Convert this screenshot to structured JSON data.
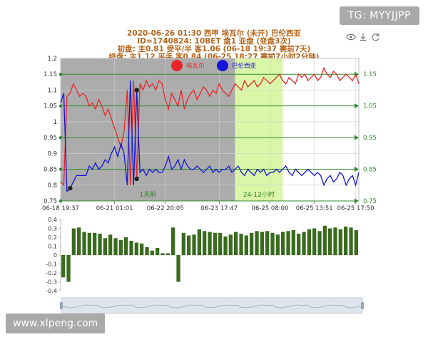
{
  "header": {
    "line1": "2020-06-26 01:30 西甲 埃瓦尔 (未开) 巴伦西亚",
    "line2": "ID=1740824: 10BET 盘1 亚盘 (变盘3次)",
    "line3": "初盘:    主0.81    受平/半  客1.06    (06-18 19:37 赛前7天)",
    "line4": "终盘:    主1.12    平手  客0.84    (06-25 18:27 赛前7小时2分钟)"
  },
  "watermark_top": "TG: MYYJJPP",
  "watermark_bottom": "www.xlpeng.com",
  "toolbar": {
    "view_icon": "eye-icon",
    "download_icon": "download-icon",
    "refresh_icon": "refresh-icon"
  },
  "colors": {
    "home": "#e8262a",
    "away": "#1515d9",
    "gray_zone": "#a8a8a8",
    "green_zone": "#d8f5a2",
    "ref_line": "#2e8b2e",
    "bar": "#3a6b1f"
  },
  "chart_data": {
    "type": "line",
    "legend": [
      "埃瓦尔",
      "巴伦西亚"
    ],
    "xticks": [
      "06-18 19:37",
      "06-21 01:01",
      "06-22 20:05",
      "06-23 17:47",
      "06-25 08:00",
      "06-25 13:51",
      "06-25 17:50"
    ],
    "ylim": [
      0.75,
      1.2
    ],
    "yticks": [
      "0.75",
      "0.8",
      "0.85",
      "0.9",
      "0.95",
      "1",
      "1.05",
      "1.1",
      "1.15",
      "1.2"
    ],
    "ref_lines": [
      1.15,
      1.05,
      0.95,
      0.85,
      0.75
    ],
    "ref_labels": [
      "1.15",
      "1.05",
      "0.95",
      "0.85",
      "0.75"
    ],
    "zones": [
      {
        "label": "1天前",
        "from": 0,
        "to": 55
      },
      {
        "label": "24-12小时",
        "from": 55,
        "to": 70
      }
    ],
    "series": [
      {
        "name": "埃瓦尔",
        "values": [
          0.81,
          0.8,
          1.08,
          1.09,
          1.12,
          1.1,
          1.08,
          1.09,
          1.08,
          1.05,
          1.06,
          1.04,
          1.07,
          1.05,
          1.02,
          1.04,
          1.01,
          0.98,
          0.95,
          0.92,
          0.97,
          1.1,
          0.8,
          1.13,
          0.82,
          1.12,
          1.1,
          1.13,
          1.11,
          1.12,
          1.1,
          1.13,
          1.12,
          1.07,
          1.04,
          1.09,
          1.07,
          1.05,
          1.1,
          1.04,
          1.07,
          1.09,
          1.1,
          1.07,
          1.09,
          1.11,
          1.1,
          1.08,
          1.1,
          1.09,
          1.12,
          1.1,
          1.09,
          1.08,
          1.1,
          1.12,
          1.11,
          1.1,
          1.13,
          1.11,
          1.12,
          1.13,
          1.11,
          1.12,
          1.14,
          1.13,
          1.12,
          1.13,
          1.14,
          1.15,
          1.13,
          1.12,
          1.14,
          1.13,
          1.12,
          1.15,
          1.14,
          1.15,
          1.13,
          1.14,
          1.15,
          1.13,
          1.14,
          1.17,
          1.15,
          1.14,
          1.16,
          1.15,
          1.13,
          1.14,
          1.15,
          1.14,
          1.13,
          1.15,
          1.12
        ]
      },
      {
        "name": "巴伦西亚",
        "values": [
          1.06,
          1.09,
          0.78,
          0.79,
          0.81,
          0.83,
          0.83,
          0.83,
          0.83,
          0.86,
          0.85,
          0.87,
          0.85,
          0.86,
          0.88,
          0.87,
          0.9,
          0.92,
          0.89,
          0.93,
          0.9,
          0.8,
          1.13,
          0.8,
          1.1,
          0.84,
          0.85,
          0.83,
          0.85,
          0.84,
          0.85,
          0.84,
          0.84,
          0.86,
          0.89,
          0.85,
          0.86,
          0.88,
          0.85,
          0.88,
          0.86,
          0.85,
          0.85,
          0.86,
          0.85,
          0.84,
          0.85,
          0.86,
          0.84,
          0.85,
          0.84,
          0.85,
          0.85,
          0.86,
          0.84,
          0.85,
          0.86,
          0.84,
          0.83,
          0.85,
          0.84,
          0.83,
          0.85,
          0.84,
          0.85,
          0.83,
          0.84,
          0.84,
          0.85,
          0.84,
          0.85,
          0.86,
          0.84,
          0.83,
          0.85,
          0.84,
          0.83,
          0.84,
          0.85,
          0.84,
          0.83,
          0.84,
          0.83,
          0.8,
          0.82,
          0.83,
          0.81,
          0.82,
          0.84,
          0.83,
          0.8,
          0.82,
          0.83,
          0.8,
          0.84
        ]
      }
    ],
    "markers": [
      {
        "series": 1,
        "index": 3
      },
      {
        "series": 0,
        "index": 24
      },
      {
        "series": 1,
        "index": 24
      }
    ],
    "bars": {
      "ylim": [
        -0.4,
        0.4
      ],
      "yticks": [
        "0.4",
        "0.3",
        "0.2",
        "0.1",
        "0",
        "-0.1",
        "-0.2",
        "-0.3",
        "-0.4"
      ],
      "values": [
        -0.25,
        -0.3,
        0.3,
        0.31,
        0.26,
        0.25,
        0.25,
        0.24,
        0.19,
        0.23,
        0.19,
        0.17,
        0.2,
        0.16,
        0.14,
        0.13,
        0.09,
        0.05,
        0.08,
        0.02,
        0.02,
        0.31,
        -0.3,
        0.25,
        0.22,
        0.23,
        0.29,
        0.27,
        0.26,
        0.25,
        0.25,
        0.21,
        0.23,
        0.26,
        0.24,
        0.22,
        0.25,
        0.27,
        0.26,
        0.27,
        0.25,
        0.23,
        0.26,
        0.27,
        0.28,
        0.24,
        0.26,
        0.29,
        0.3,
        0.27,
        0.33,
        0.3,
        0.31,
        0.29,
        0.32,
        0.31,
        0.28
      ]
    }
  }
}
